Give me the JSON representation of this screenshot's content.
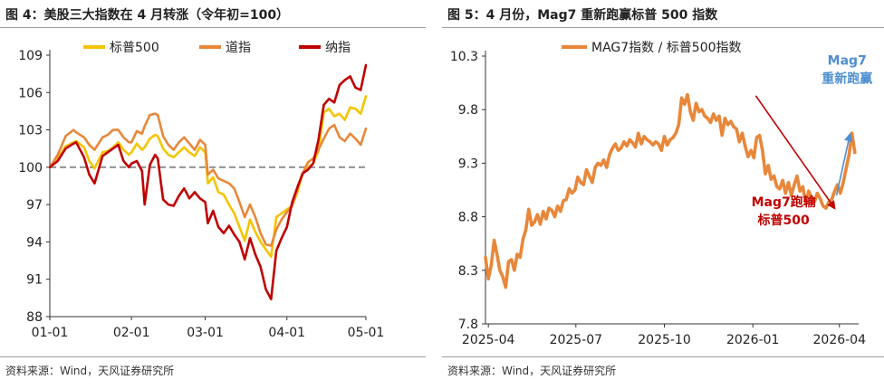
{
  "left": {
    "title": "图 4：美股三大指数在 4 月转涨（令年初=100）",
    "source": "资料来源：Wind，天风证券研究所",
    "chart_data": {
      "type": "line",
      "x_ticks": [
        "01-01",
        "02-01",
        "03-01",
        "04-01",
        "05-01"
      ],
      "x_tick_pos": [
        0,
        31,
        59,
        90,
        120
      ],
      "y_ticks": [
        88,
        91,
        94,
        97,
        100,
        103,
        106,
        109
      ],
      "ylim": [
        88,
        109
      ],
      "xlim": [
        0,
        120
      ],
      "reference_line": 100,
      "legend_position": "top",
      "series": [
        {
          "name": "标普500",
          "color": "#f5c400",
          "x": [
            0,
            3,
            6,
            9,
            10,
            13,
            15,
            17,
            20,
            22,
            24,
            26,
            28,
            30,
            31,
            33,
            35,
            36,
            38,
            40,
            41,
            43,
            45,
            47,
            49,
            51,
            53,
            55,
            57,
            59,
            60,
            62,
            64,
            66,
            68,
            70,
            72,
            74,
            76,
            78,
            80,
            82,
            84,
            86,
            88,
            90,
            92,
            94,
            96,
            98,
            100,
            102,
            104,
            106,
            108,
            110,
            112,
            114,
            116,
            118,
            120
          ],
          "y": [
            100.0,
            100.7,
            101.7,
            102.0,
            102.1,
            101.6,
            100.5,
            99.9,
            101.2,
            101.3,
            101.6,
            102.0,
            101.4,
            101.0,
            101.2,
            101.9,
            101.4,
            101.6,
            102.3,
            102.6,
            102.5,
            101.5,
            101.0,
            100.8,
            101.2,
            101.6,
            101.2,
            100.9,
            101.6,
            101.2,
            98.7,
            99.2,
            98.0,
            97.8,
            97.0,
            96.3,
            95.2,
            94.1,
            95.8,
            94.8,
            94.0,
            93.4,
            92.8,
            96.0,
            96.3,
            96.6,
            96.9,
            98.0,
            99.5,
            100.0,
            100.3,
            101.3,
            104.4,
            104.7,
            104.1,
            104.3,
            103.8,
            104.8,
            104.7,
            104.3,
            105.7
          ]
        },
        {
          "name": "道指",
          "color": "#e8873a",
          "x": [
            0,
            3,
            6,
            9,
            10,
            13,
            15,
            17,
            20,
            22,
            24,
            26,
            28,
            30,
            31,
            33,
            35,
            36,
            38,
            40,
            41,
            43,
            45,
            47,
            49,
            51,
            53,
            55,
            57,
            59,
            60,
            62,
            64,
            66,
            68,
            70,
            72,
            74,
            76,
            78,
            80,
            82,
            84,
            86,
            88,
            90,
            92,
            94,
            96,
            98,
            100,
            102,
            104,
            106,
            108,
            110,
            112,
            114,
            116,
            118,
            120
          ],
          "y": [
            100.0,
            101.0,
            102.5,
            103.0,
            102.8,
            102.4,
            101.8,
            101.4,
            102.4,
            102.6,
            103.0,
            103.0,
            102.4,
            102.0,
            102.0,
            102.9,
            102.7,
            103.3,
            104.2,
            104.3,
            104.2,
            102.5,
            101.8,
            101.4,
            102.0,
            102.4,
            101.9,
            101.4,
            102.2,
            101.8,
            99.4,
            99.8,
            99.1,
            98.9,
            98.7,
            98.3,
            97.2,
            96.0,
            97.0,
            96.0,
            94.7,
            93.8,
            93.7,
            95.0,
            95.8,
            96.4,
            96.9,
            98.3,
            99.5,
            100.4,
            100.7,
            101.4,
            102.3,
            103.1,
            103.4,
            102.4,
            102.1,
            102.7,
            102.3,
            101.8,
            103.1
          ]
        },
        {
          "name": "纳指",
          "color": "#c00000",
          "x": [
            0,
            3,
            6,
            9,
            10,
            13,
            15,
            17,
            20,
            22,
            24,
            26,
            28,
            30,
            31,
            33,
            35,
            36,
            38,
            40,
            41,
            43,
            45,
            47,
            49,
            51,
            53,
            55,
            57,
            59,
            60,
            62,
            64,
            66,
            68,
            70,
            72,
            74,
            76,
            78,
            80,
            82,
            84,
            86,
            88,
            90,
            92,
            94,
            96,
            98,
            100,
            102,
            104,
            106,
            108,
            110,
            112,
            114,
            116,
            118,
            120
          ],
          "y": [
            100.0,
            100.5,
            101.5,
            101.9,
            102.0,
            100.8,
            99.4,
            98.7,
            100.9,
            101.2,
            101.5,
            101.8,
            100.5,
            100.0,
            100.3,
            100.5,
            99.7,
            97.0,
            100.2,
            101.0,
            100.7,
            97.4,
            97.0,
            96.9,
            97.7,
            98.3,
            97.5,
            98.0,
            97.5,
            97.2,
            95.5,
            96.5,
            95.2,
            94.7,
            95.3,
            94.6,
            94.0,
            92.6,
            94.3,
            93.0,
            92.0,
            90.2,
            89.4,
            93.3,
            94.3,
            95.2,
            97.2,
            98.4,
            99.5,
            99.8,
            100.3,
            102.2,
            105.0,
            105.5,
            105.2,
            106.6,
            107.0,
            107.3,
            106.4,
            106.2,
            108.2
          ]
        }
      ]
    }
  },
  "right": {
    "title": "图 5：4 月份，Mag7 重新跑赢标普 500 指数",
    "source": "资料来源：Wind，天风证券研究所",
    "chart_data": {
      "type": "line",
      "x_ticks": [
        "2025-04",
        "2025-07",
        "2025-10",
        "2026-01",
        "2026-04"
      ],
      "x_tick_pos": [
        0,
        91,
        183,
        275,
        365
      ],
      "y_ticks": [
        7.8,
        8.3,
        8.8,
        9.3,
        9.8,
        10.3
      ],
      "ylim": [
        7.8,
        10.3
      ],
      "xlim": [
        -3,
        385
      ],
      "legend_position": "top-left",
      "series": [
        {
          "name": "MAG7指数 / 标普500指数",
          "color": "#e8873a",
          "x": [
            -3,
            0,
            3,
            6,
            9,
            12,
            15,
            18,
            21,
            24,
            27,
            30,
            33,
            36,
            39,
            42,
            45,
            48,
            51,
            54,
            57,
            60,
            63,
            66,
            69,
            72,
            75,
            78,
            81,
            84,
            87,
            90,
            93,
            96,
            99,
            102,
            105,
            108,
            111,
            114,
            117,
            120,
            123,
            126,
            129,
            132,
            135,
            138,
            141,
            144,
            147,
            150,
            153,
            156,
            159,
            162,
            165,
            168,
            171,
            174,
            177,
            180,
            183,
            186,
            189,
            192,
            195,
            198,
            201,
            204,
            207,
            210,
            213,
            216,
            219,
            222,
            225,
            228,
            231,
            234,
            237,
            240,
            243,
            246,
            249,
            252,
            255,
            258,
            261,
            264,
            267,
            270,
            273,
            276,
            279,
            282,
            285,
            288,
            291,
            294,
            297,
            300,
            303,
            306,
            309,
            312,
            315,
            318,
            321,
            324,
            327,
            330,
            333,
            336,
            339,
            342,
            345,
            348,
            351,
            354,
            357,
            360,
            363,
            366,
            369,
            372,
            375,
            378,
            381
          ],
          "y": [
            8.42,
            8.22,
            8.35,
            8.58,
            8.45,
            8.3,
            8.24,
            8.14,
            8.38,
            8.4,
            8.3,
            8.45,
            8.42,
            8.59,
            8.68,
            8.87,
            8.72,
            8.75,
            8.82,
            8.73,
            8.85,
            8.78,
            8.88,
            8.86,
            8.8,
            8.9,
            8.85,
            8.95,
            8.96,
            9.06,
            9.02,
            9.05,
            9.17,
            9.12,
            9.1,
            9.24,
            9.18,
            9.12,
            9.26,
            9.3,
            9.28,
            9.33,
            9.26,
            9.38,
            9.44,
            9.48,
            9.42,
            9.44,
            9.5,
            9.46,
            9.52,
            9.49,
            9.45,
            9.58,
            9.48,
            9.55,
            9.52,
            9.5,
            9.47,
            9.5,
            9.48,
            9.42,
            9.55,
            9.47,
            9.52,
            9.54,
            9.58,
            9.66,
            9.91,
            9.85,
            9.94,
            9.78,
            9.7,
            9.86,
            9.78,
            9.8,
            9.74,
            9.72,
            9.68,
            9.76,
            9.7,
            9.74,
            9.56,
            9.72,
            9.66,
            9.69,
            9.64,
            9.62,
            9.5,
            9.58,
            9.46,
            9.36,
            9.42,
            9.35,
            9.54,
            9.56,
            9.42,
            9.2,
            9.28,
            9.15,
            9.18,
            9.08,
            9.06,
            9.14,
            9.02,
            9.12,
            9.0,
            9.1,
            9.18,
            9.04,
            9.08,
            8.92,
            9.04,
            8.98,
            8.94,
            9.02,
            8.97,
            8.9,
            8.88,
            8.94,
            8.96,
            9.04,
            9.1,
            9.02,
            9.12,
            9.25,
            9.38,
            9.58,
            9.4
          ]
        }
      ],
      "annotations": [
        {
          "lines": [
            "Mag7跑输",
            "标普500"
          ],
          "color": "#c00000",
          "arrow_from": [
            278,
            9.93
          ],
          "arrow_to": [
            360,
            8.88
          ],
          "text_at": [
            307,
            8.9
          ]
        },
        {
          "lines": [
            "Mag7",
            "重新跑赢"
          ],
          "color": "#4f8fcf",
          "arrow_from": [
            362,
            9.0
          ],
          "arrow_to": [
            376,
            9.57
          ],
          "text_at": [
            373,
            10.22
          ]
        }
      ]
    }
  }
}
